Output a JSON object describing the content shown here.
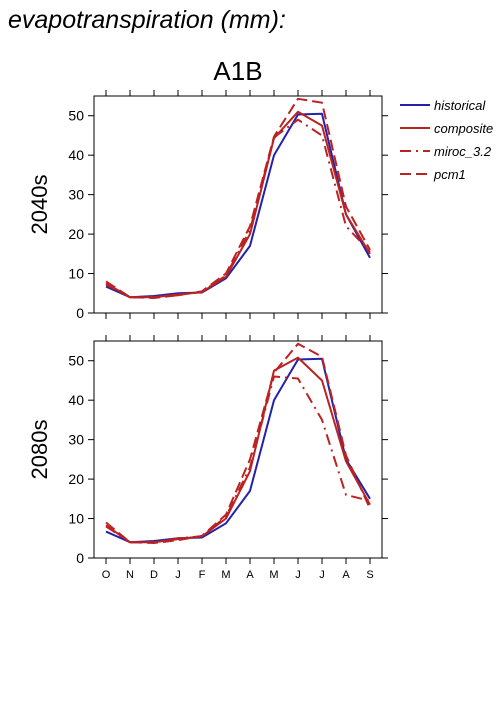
{
  "page_title": "evapotranspiration (mm):",
  "scenario": "A1B",
  "legend": {
    "placement": "right",
    "items": [
      {
        "label": "historical",
        "color": "#2222aa",
        "dash": "solid"
      },
      {
        "label": "composite",
        "color": "#bb2222",
        "dash": "solid"
      },
      {
        "label": "miroc_3.2",
        "color": "#bb2222",
        "dash": "dashdot"
      },
      {
        "label": "pcm1",
        "color": "#bb2222",
        "dash": "dashed"
      }
    ]
  },
  "chart_data": [
    {
      "type": "line",
      "ylabel": "2040s",
      "categories": [
        "O",
        "N",
        "D",
        "J",
        "F",
        "M",
        "A",
        "M",
        "J",
        "J",
        "A",
        "S"
      ],
      "ylim": [
        0,
        55
      ],
      "yticks": [
        0,
        10,
        20,
        30,
        40,
        50
      ],
      "grid": false,
      "show_xtick_labels": false,
      "series": [
        {
          "name": "historical",
          "values": [
            6.7,
            4.0,
            4.3,
            5.0,
            5.2,
            8.8,
            17.0,
            40.0,
            50.3,
            50.5,
            25.0,
            14.0
          ]
        },
        {
          "name": "composite",
          "values": [
            7.5,
            4.0,
            4.0,
            4.7,
            5.3,
            9.2,
            20.0,
            44.3,
            51.0,
            47.5,
            25.0,
            15.0
          ]
        },
        {
          "name": "miroc_3.2",
          "values": [
            7.2,
            4.0,
            4.0,
            4.5,
            5.4,
            9.5,
            21.0,
            44.5,
            49.0,
            45.0,
            22.0,
            15.5
          ]
        },
        {
          "name": "pcm1",
          "values": [
            8.0,
            4.0,
            3.8,
            4.5,
            5.5,
            10.0,
            22.0,
            44.7,
            54.3,
            53.3,
            27.0,
            16.0
          ]
        }
      ]
    },
    {
      "type": "line",
      "ylabel": "2080s",
      "categories": [
        "O",
        "N",
        "D",
        "J",
        "F",
        "M",
        "A",
        "M",
        "J",
        "J",
        "A",
        "S"
      ],
      "ylim": [
        0,
        55
      ],
      "yticks": [
        0,
        10,
        20,
        30,
        40,
        50
      ],
      "grid": false,
      "show_xtick_labels": true,
      "series": [
        {
          "name": "historical",
          "values": [
            6.7,
            4.0,
            4.3,
            5.0,
            5.2,
            8.8,
            17.0,
            40.0,
            50.3,
            50.5,
            25.0,
            15.0
          ]
        },
        {
          "name": "composite",
          "values": [
            8.3,
            4.0,
            4.0,
            4.8,
            5.5,
            10.0,
            22.0,
            47.5,
            50.8,
            45.0,
            24.5,
            13.5
          ]
        },
        {
          "name": "miroc_3.2",
          "values": [
            8.0,
            4.0,
            4.0,
            5.0,
            5.5,
            10.5,
            23.0,
            46.0,
            45.5,
            35.0,
            16.0,
            14.5
          ]
        },
        {
          "name": "pcm1",
          "values": [
            9.0,
            4.0,
            3.8,
            4.5,
            5.6,
            11.0,
            25.0,
            47.0,
            54.3,
            51.0,
            26.0,
            12.5
          ]
        }
      ]
    }
  ]
}
